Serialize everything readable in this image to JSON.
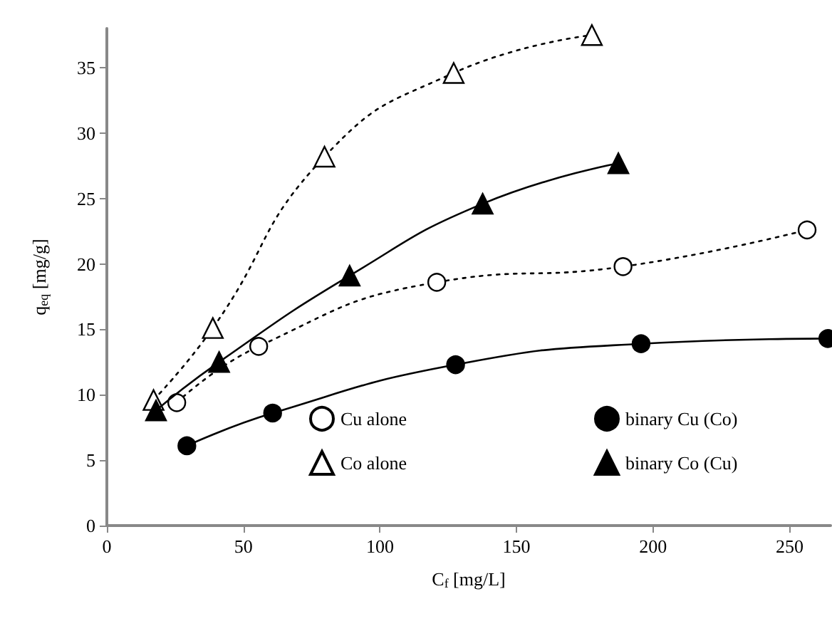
{
  "chart_data": {
    "type": "line",
    "xlabel": "C$_{f}$ [mg/L]",
    "ylabel": "q$_{eq}$ [mg/g]",
    "xlim": [
      0,
      265
    ],
    "xticks": [
      0,
      50,
      100,
      150,
      200,
      250
    ],
    "ylim": [
      0,
      38
    ],
    "yticks": [
      0,
      5,
      10,
      15,
      20,
      25,
      30,
      35
    ],
    "grid": false,
    "legend": "bottom right",
    "series": [
      {
        "name": "Cu alone",
        "color": "#ffffff",
        "marker": "circle",
        "line_style": "dotted",
        "x": [
          25.6,
          55.6,
          120.8,
          189,
          256.4
        ],
        "values": [
          9.4,
          13.7,
          18.6,
          19.8,
          22.6
        ]
      },
      {
        "name": "binary Cu (Co)",
        "color": "#000000",
        "marker": "circle",
        "line_style": "solid",
        "x": [
          29.3,
          60.7,
          127.7,
          195.6,
          264
        ],
        "values": [
          6.1,
          8.6,
          12.3,
          13.9,
          14.3
        ]
      },
      {
        "name": "Co alone",
        "color": "#ffffff",
        "marker": "triangle",
        "line_style": "dotted",
        "x": [
          17.1,
          38.8,
          79.7,
          127,
          177.6
        ],
        "values": [
          9.6,
          15.1,
          28.2,
          34.6,
          37.5
        ]
      },
      {
        "name": "binary Co (Cu)",
        "color": "#000000",
        "marker": "triangle",
        "line_style": "solid",
        "x": [
          18,
          41.1,
          88.9,
          137.6,
          187.3
        ],
        "values": [
          8.8,
          12.5,
          19.1,
          24.6,
          27.7
        ]
      }
    ]
  }
}
